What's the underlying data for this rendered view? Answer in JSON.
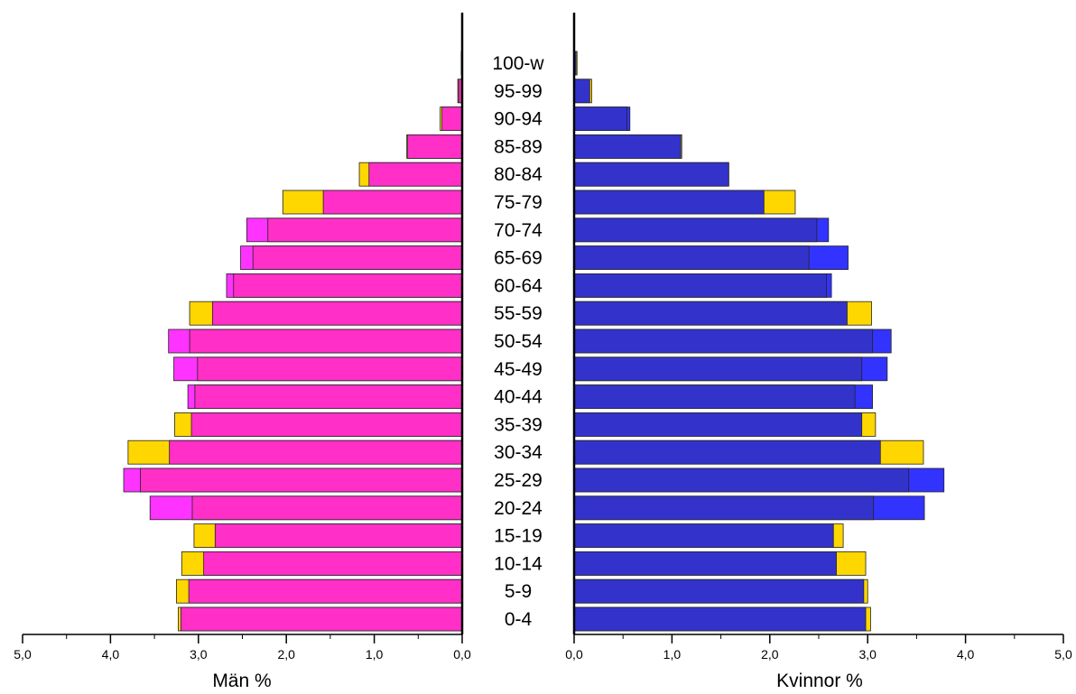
{
  "chart_data": {
    "type": "bar",
    "categories": [
      "0-4",
      "5-9",
      "10-14",
      "15-19",
      "20-24",
      "25-29",
      "30-34",
      "35-39",
      "40-44",
      "45-49",
      "50-54",
      "55-59",
      "60-64",
      "65-69",
      "70-74",
      "75-79",
      "80-84",
      "85-89",
      "90-94",
      "95-99",
      "100-w"
    ],
    "left_panel": {
      "xlabel": "Män %",
      "xlim": [
        0,
        5
      ],
      "ticks": [
        "5,0",
        "4,0",
        "3,0",
        "2,0",
        "1,0",
        "0,0"
      ],
      "series": [
        {
          "values": [
            3.23,
            3.25,
            3.19,
            3.05,
            3.55,
            3.85,
            3.8,
            3.27,
            3.12,
            3.28,
            3.34,
            3.1,
            2.68,
            2.52,
            2.45,
            2.04,
            1.17,
            0.63,
            0.25,
            0.05,
            0.01
          ]
        },
        {
          "values": [
            3.2,
            3.11,
            2.94,
            2.81,
            3.07,
            3.66,
            3.33,
            3.08,
            3.04,
            3.01,
            3.1,
            2.84,
            2.6,
            2.38,
            2.21,
            1.58,
            1.06,
            0.62,
            0.23,
            0.04,
            0.01
          ]
        }
      ],
      "colors": {
        "outer": "#FF33FF",
        "outer_alt": "#FFD700",
        "inner": "#FF2FC8"
      }
    },
    "right_panel": {
      "xlabel": "Kvinnor %",
      "xlim": [
        0,
        5
      ],
      "ticks": [
        "0,0",
        "1,0",
        "2,0",
        "3,0",
        "4,0",
        "5,0"
      ],
      "series": [
        {
          "values": [
            3.03,
            3.0,
            2.98,
            2.75,
            3.58,
            3.78,
            3.57,
            3.08,
            3.05,
            3.2,
            3.24,
            3.04,
            2.63,
            2.8,
            2.6,
            2.26,
            1.58,
            1.1,
            0.57,
            0.18,
            0.03
          ]
        },
        {
          "values": [
            2.98,
            2.96,
            2.68,
            2.65,
            3.06,
            3.42,
            3.13,
            2.94,
            2.87,
            2.94,
            3.05,
            2.79,
            2.58,
            2.4,
            2.48,
            1.94,
            1.58,
            1.09,
            0.54,
            0.16,
            0.02
          ]
        }
      ],
      "colors": {
        "outer": "#3333FF",
        "outer_alt": "#FFD700",
        "inner": "#3333CC"
      }
    }
  }
}
